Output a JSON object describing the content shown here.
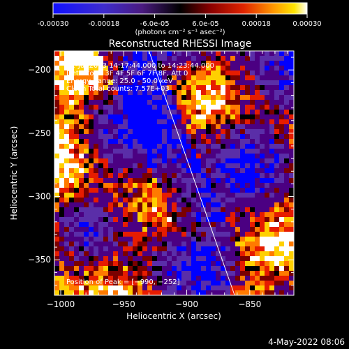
{
  "colorbar": {
    "ticks": [
      "-0.00030",
      "-0.00018",
      "-6.0e-05",
      "6.0e-05",
      "0.00018",
      "0.00030"
    ],
    "tick_values": [
      -0.0003,
      -0.00018,
      -6e-05,
      6e-05,
      0.00018,
      0.0003
    ],
    "range": [
      -0.0003,
      0.0003
    ],
    "units_label": "(photons cm⁻² s⁻¹ asec⁻²)"
  },
  "chart_data": {
    "type": "heatmap",
    "title": "Reconstructed RHESSI Image",
    "xlabel": "Heliocentric X (arcsec)",
    "ylabel": "Heliocentric Y (arcsec)",
    "xlim": [
      -1005,
      -815
    ],
    "ylim": [
      -378,
      -185
    ],
    "x_ticks": [
      -1000,
      -950,
      -900,
      -850
    ],
    "x_tick_labels": [
      "−1000",
      "−950",
      "−900",
      "−850"
    ],
    "y_ticks": [
      -200,
      -250,
      -300,
      -350
    ],
    "y_tick_labels": [
      "−200",
      "−250",
      "−300",
      "−350"
    ],
    "limb_line": {
      "x": [
        -930,
        -862
      ],
      "y": [
        -185,
        -378
      ]
    },
    "annotations": [
      "31-Jul-2003 14:17:44.000 to 14:23:44.000",
      "Detectors: 3F 4F 5F 6F 7F 8F, Att 0",
      "Energy Range: 25.0 - 50.0 keV",
      "Clean    Total counts: 7.57E+03"
    ],
    "peak_label": "Position of Peak = [−990, −252]",
    "peak_position": [
      -990,
      -252
    ],
    "grid": false,
    "colormap": [
      "#0000ff",
      "#5a2ea8",
      "#4b0082",
      "#000000",
      "#7a0000",
      "#e61c00",
      "#ff7a00",
      "#ffd000",
      "#ffffff"
    ]
  },
  "footer": {
    "date": "4-May-2022 08:06"
  }
}
